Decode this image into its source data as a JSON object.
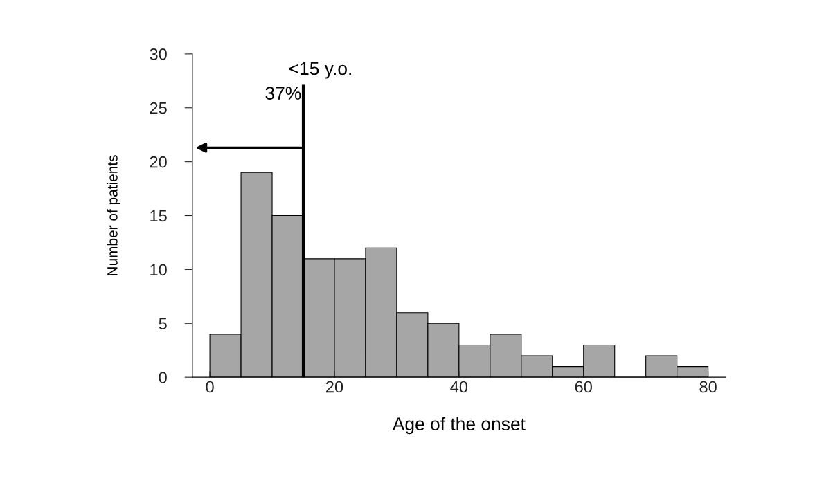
{
  "chart_data": {
    "type": "histogram",
    "xlabel": "Age of the onset",
    "ylabel": "Number of patients",
    "bins": [
      0,
      5,
      10,
      15,
      20,
      25,
      30,
      35,
      40,
      45,
      50,
      55,
      60,
      65,
      70,
      75,
      80
    ],
    "values": [
      4,
      19,
      15,
      11,
      11,
      12,
      6,
      5,
      3,
      4,
      2,
      1,
      3,
      0,
      2,
      1
    ],
    "color": "#a6a6a6",
    "xlim": [
      -2.8,
      82.8
    ],
    "xticks": [
      0,
      20,
      40,
      60,
      80
    ],
    "ylim": [
      0,
      30
    ],
    "yticks": [
      0,
      5,
      10,
      15,
      20,
      25,
      30
    ],
    "ref_lines": [
      {
        "axis": "x",
        "value": 15,
        "color": "#000000"
      }
    ],
    "annotations": [
      "<15 y.o.",
      "37%"
    ],
    "grid": false,
    "legend": false
  }
}
